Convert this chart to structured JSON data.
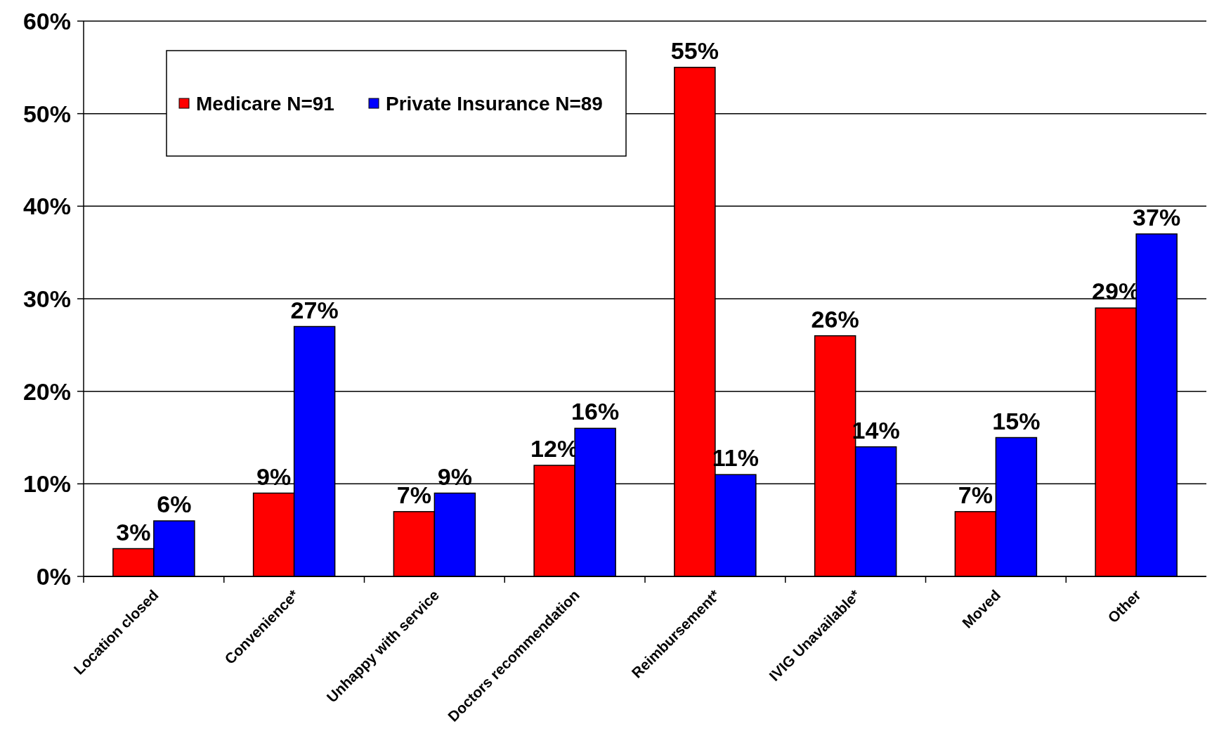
{
  "chart_data": {
    "type": "bar",
    "categories": [
      "Location closed",
      "Convenience*",
      "Unhappy with service",
      "Doctors recommendation",
      "Reimbursement*",
      "IVIG Unavailable*",
      "Moved",
      "Other"
    ],
    "series": [
      {
        "name": "Medicare N=91",
        "color": "#ff0000",
        "values": [
          3,
          9,
          7,
          12,
          55,
          26,
          7,
          29
        ],
        "value_labels": [
          "3%",
          "9%",
          "7%",
          "12%",
          "55%",
          "26%",
          "7%",
          "29%"
        ]
      },
      {
        "name": "Private Insurance N=89",
        "color": "#0000ff",
        "values": [
          6,
          27,
          9,
          16,
          11,
          14,
          15,
          37
        ],
        "value_labels": [
          "6%",
          "27%",
          "9%",
          "16%",
          "11%",
          "14%",
          "15%",
          "37%"
        ]
      }
    ],
    "ylim": [
      0,
      60
    ],
    "yticks": [
      {
        "value": 0,
        "label": "0%"
      },
      {
        "value": 10,
        "label": "10%"
      },
      {
        "value": 20,
        "label": "20%"
      },
      {
        "value": 30,
        "label": "30%"
      },
      {
        "value": 40,
        "label": "40%"
      },
      {
        "value": 50,
        "label": "50%"
      },
      {
        "value": 60,
        "label": "60%"
      }
    ],
    "grid": "y",
    "legend": "top left"
  }
}
